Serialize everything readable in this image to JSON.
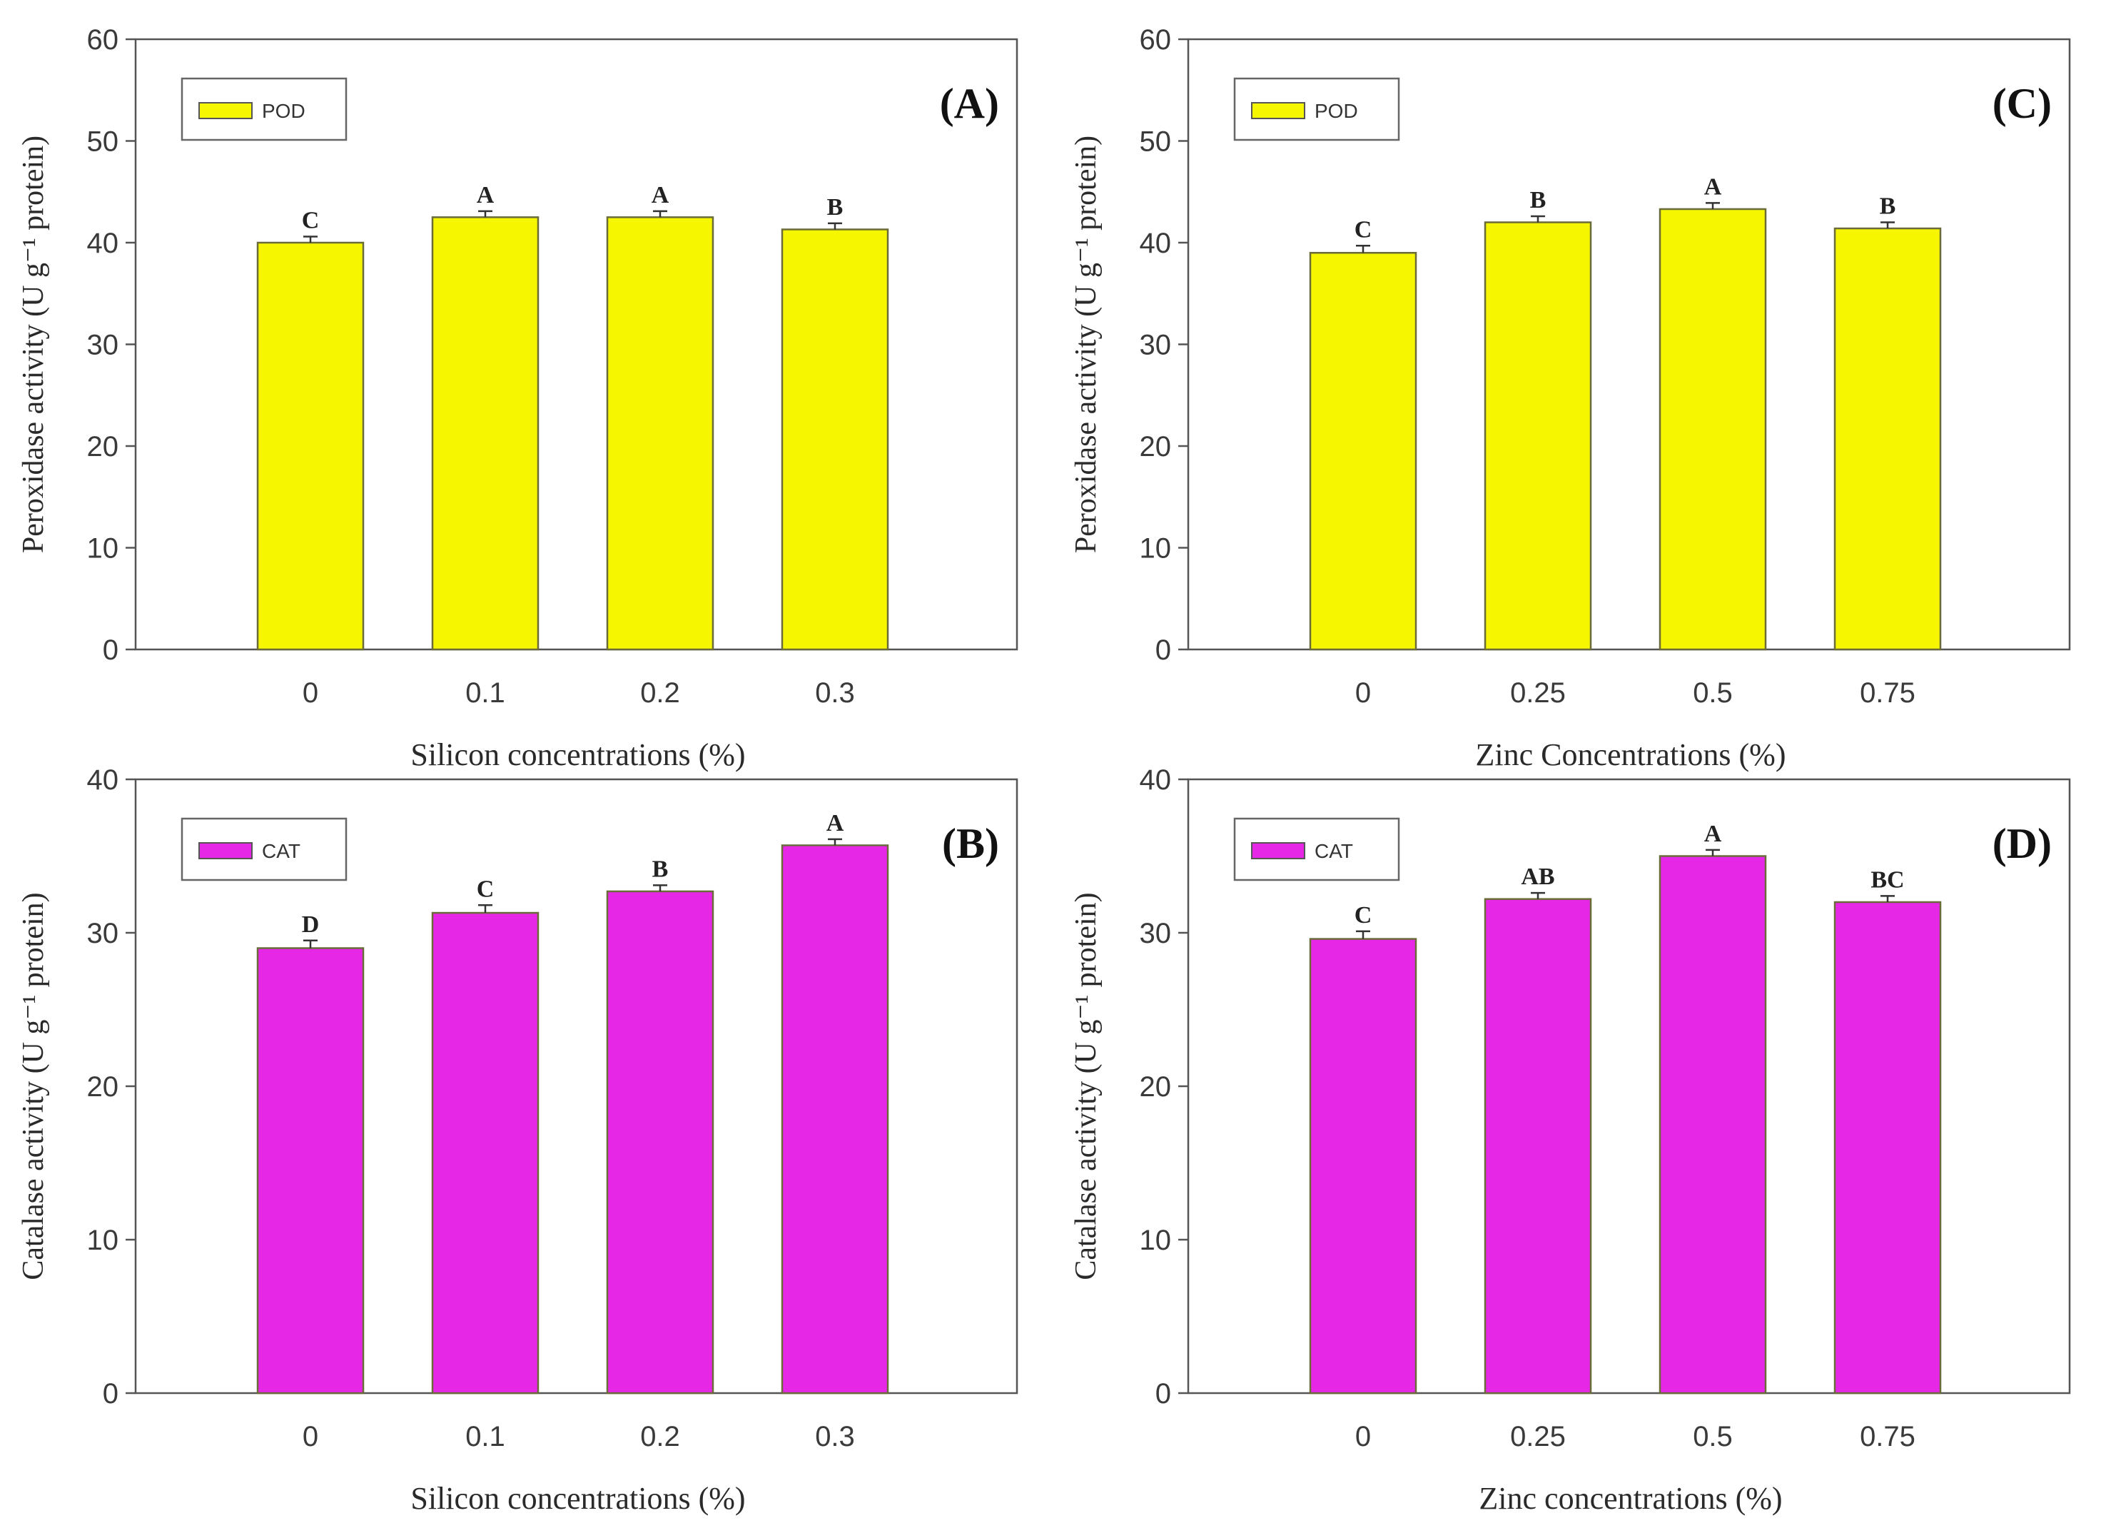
{
  "chart_data": [
    {
      "type": "bar",
      "panel_label": "(A)",
      "categories": [
        "0",
        "0.1",
        "0.2",
        "0.3"
      ],
      "series": [
        {
          "name": "POD",
          "values": [
            40.0,
            42.5,
            42.5,
            41.3
          ],
          "errors": [
            0.6,
            0.6,
            0.6,
            0.6
          ]
        }
      ],
      "significance": [
        "C",
        "A",
        "A",
        "B"
      ],
      "xlabel": "Silicon concentrations (%)",
      "ylabel": "Peroxidase activity (U g⁻¹ protein)",
      "ylim": [
        0,
        60
      ],
      "yticks": [
        0,
        10,
        20,
        30,
        40,
        50,
        60
      ],
      "legend": "top-left",
      "color": "#f6f600"
    },
    {
      "type": "bar",
      "panel_label": "(B)",
      "categories": [
        "0",
        "0.1",
        "0.2",
        "0.3"
      ],
      "series": [
        {
          "name": "CAT",
          "values": [
            29.0,
            31.3,
            32.7,
            35.7
          ],
          "errors": [
            0.5,
            0.5,
            0.4,
            0.4
          ]
        }
      ],
      "significance": [
        "D",
        "C",
        "B",
        "A"
      ],
      "xlabel": "Silicon concentrations (%)",
      "ylabel": "Catalase activity (U g⁻¹ protein)",
      "ylim": [
        0,
        40
      ],
      "yticks": [
        0,
        10,
        20,
        30,
        40
      ],
      "legend": "top-left",
      "color": "#e628e6"
    },
    {
      "type": "bar",
      "panel_label": "(C)",
      "categories": [
        "0",
        "0.25",
        "0.5",
        "0.75"
      ],
      "series": [
        {
          "name": "POD",
          "values": [
            39.0,
            42.0,
            43.3,
            41.4
          ],
          "errors": [
            0.7,
            0.6,
            0.6,
            0.6
          ]
        }
      ],
      "significance": [
        "C",
        "B",
        "A",
        "B"
      ],
      "xlabel": "Zinc Concentrations (%)",
      "ylabel": "Peroxidase activity (U g⁻¹ protein)",
      "ylim": [
        0,
        60
      ],
      "yticks": [
        0,
        10,
        20,
        30,
        40,
        50,
        60
      ],
      "legend": "top-left",
      "color": "#f6f600"
    },
    {
      "type": "bar",
      "panel_label": "(D)",
      "categories": [
        "0",
        "0.25",
        "0.5",
        "0.75"
      ],
      "series": [
        {
          "name": "CAT",
          "values": [
            29.6,
            32.2,
            35.0,
            32.0
          ],
          "errors": [
            0.5,
            0.4,
            0.4,
            0.4
          ]
        }
      ],
      "significance": [
        "C",
        "AB",
        "A",
        "BC"
      ],
      "xlabel": "Zinc concentrations (%)",
      "ylabel": "Catalase activity (U g⁻¹ protein)",
      "ylim": [
        0,
        40
      ],
      "yticks": [
        0,
        10,
        20,
        30,
        40
      ],
      "legend": "top-left",
      "color": "#e628e6"
    }
  ]
}
